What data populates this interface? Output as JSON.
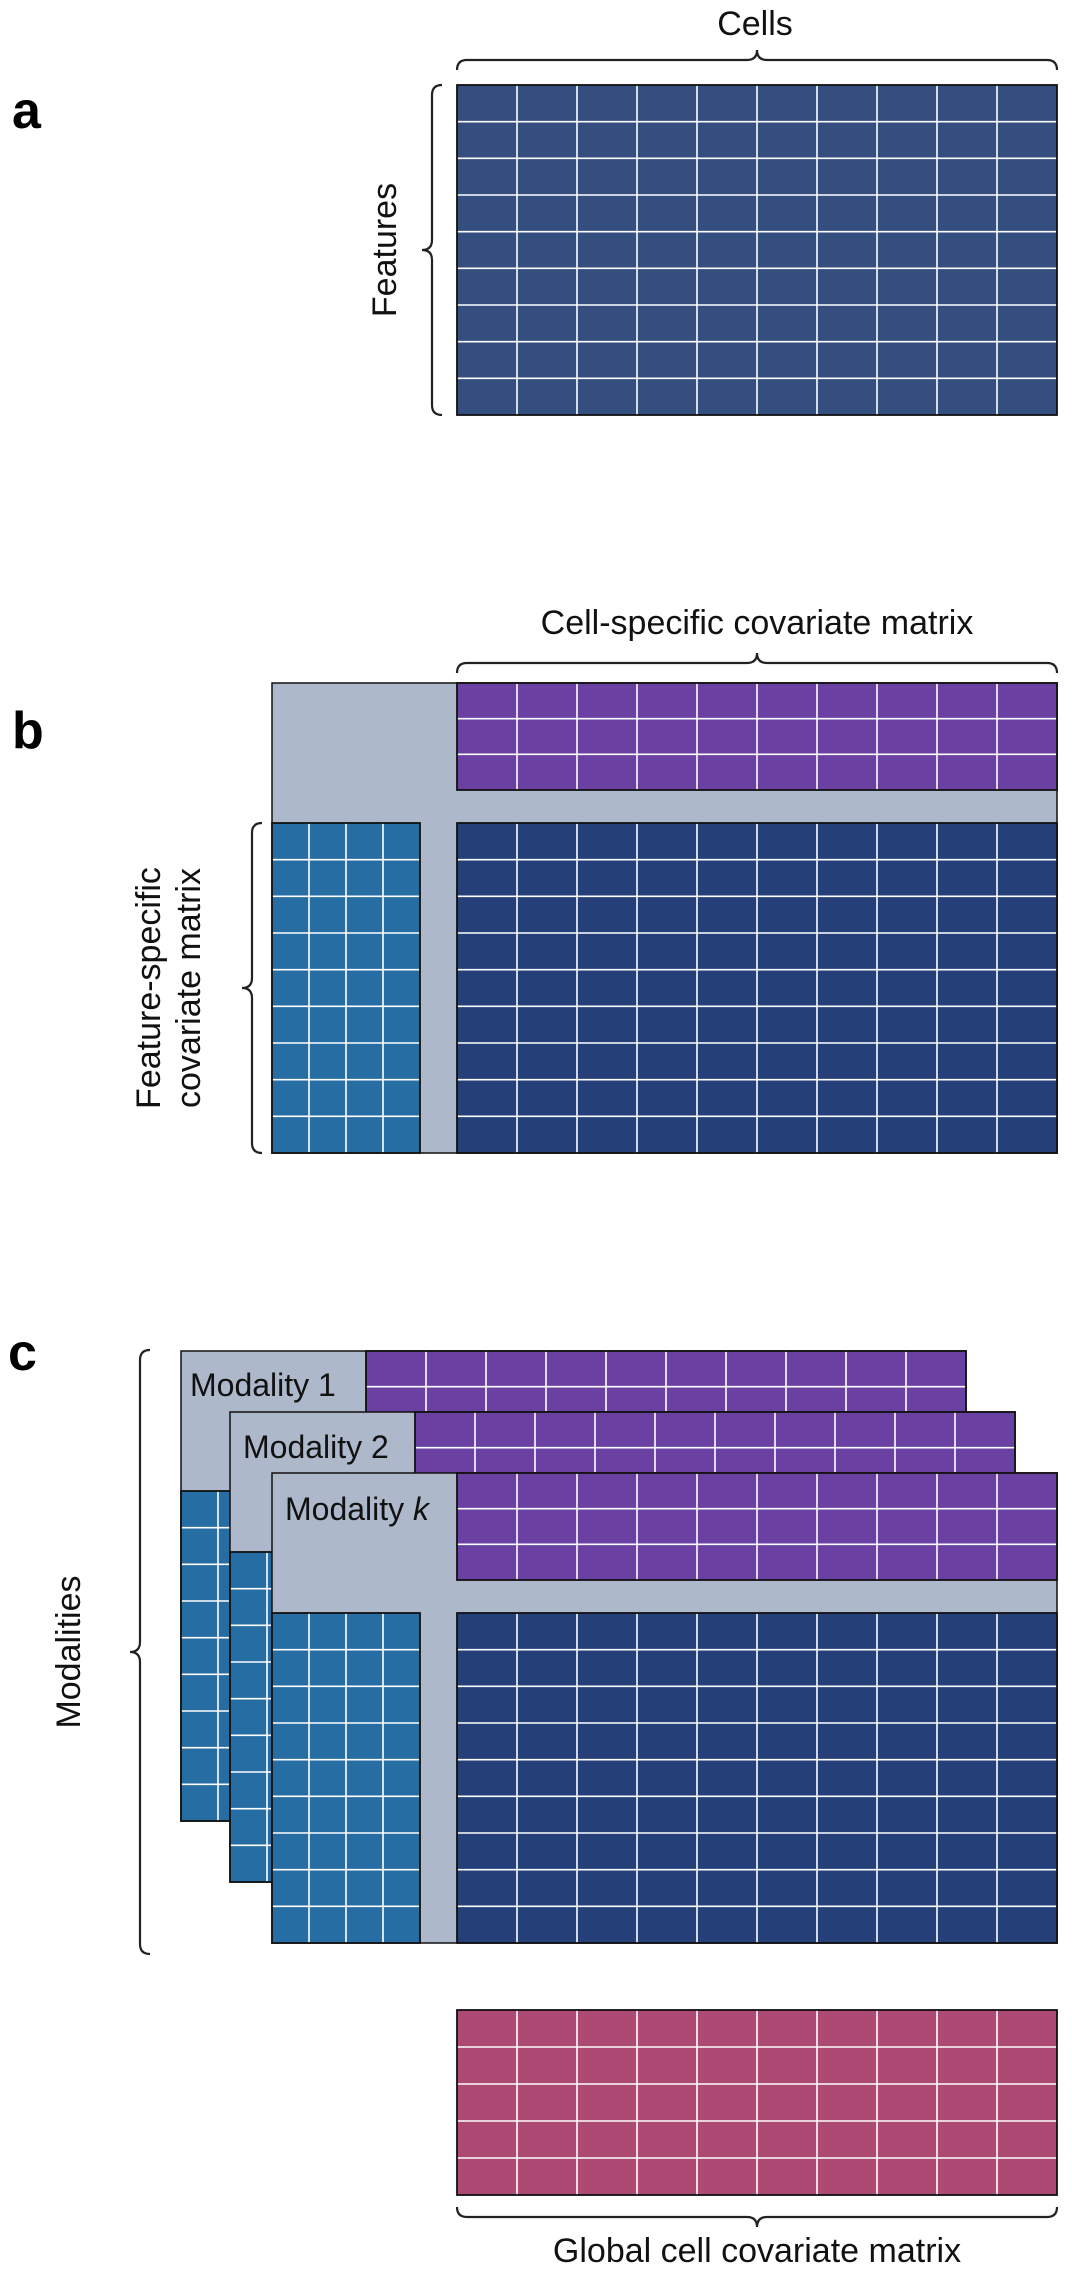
{
  "panels": {
    "a": {
      "letter": "a",
      "top_label": "Cells",
      "side_label": "Features"
    },
    "b": {
      "letter": "b",
      "top_label": "Cell-specific covariate matrix",
      "side_label_line1": "Feature-specific",
      "side_label_line2": "covariate matrix"
    },
    "c": {
      "letter": "c",
      "side_label": "Modalities",
      "modality_labels": [
        "Modality 1",
        "Modality 2",
        "Modality "
      ],
      "modality_k_symbol": "k",
      "bottom_label": "Global cell covariate matrix"
    }
  },
  "colors": {
    "data_matrix": "#253f78",
    "data_matrix_a": "#344e80",
    "cell_covariates": "#6a40a3",
    "feature_covariates": "#256da3",
    "global_covariates": "#ac4a74",
    "frame_background": "#adb8ca",
    "grid_lines": "#ffffff",
    "outline": "#111111"
  }
}
